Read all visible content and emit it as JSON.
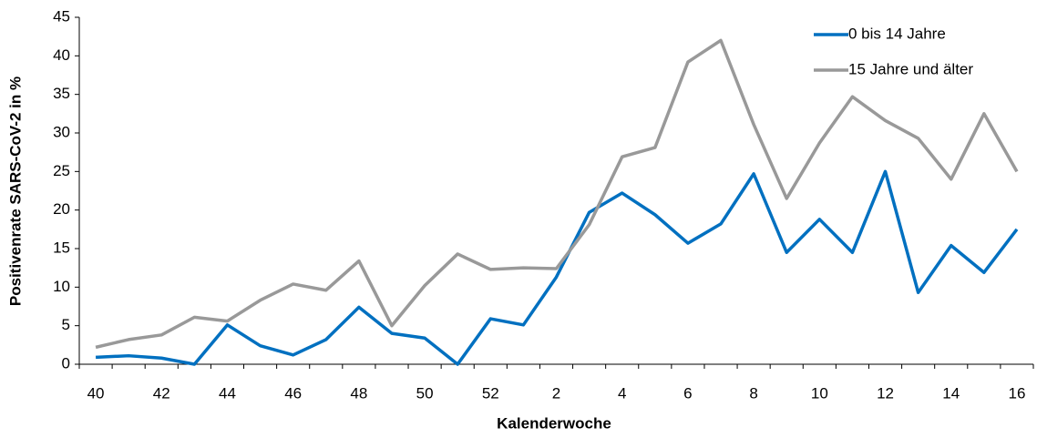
{
  "chart_data": {
    "type": "line",
    "xlabel": "Kalenderwoche",
    "ylabel": "Positivenrate SARS-CoV-2 in %",
    "categories": [
      "40",
      null,
      "42",
      null,
      "44",
      null,
      "46",
      null,
      "48",
      null,
      "50",
      null,
      "52",
      null,
      "2",
      null,
      "4",
      null,
      "6",
      null,
      "8",
      null,
      "10",
      null,
      "12",
      null,
      "14",
      null,
      "16"
    ],
    "ylim": [
      0,
      45
    ],
    "yticks": [
      0,
      5,
      10,
      15,
      20,
      25,
      30,
      35,
      40,
      45
    ],
    "legend": "upper right",
    "series": [
      {
        "name": "0 bis 14 Jahre",
        "color": "#0070c0",
        "values": [
          0.9,
          1.1,
          0.8,
          0,
          5.1,
          2.4,
          1.2,
          3.2,
          7.4,
          4.0,
          3.4,
          0,
          5.9,
          5.1,
          11.3,
          19.7,
          22.2,
          19.4,
          15.7,
          18.2,
          24.7,
          14.5,
          18.8,
          14.5,
          25.0,
          9.3,
          15.4,
          11.9,
          17.5
        ]
      },
      {
        "name": "15 Jahre und älter",
        "color": "#999999",
        "values": [
          2.2,
          3.2,
          3.8,
          6.1,
          5.6,
          8.3,
          10.4,
          9.6,
          13.4,
          5.0,
          10.2,
          14.3,
          12.3,
          12.5,
          12.4,
          18.1,
          26.9,
          28.1,
          39.2,
          42.0,
          31.1,
          21.5,
          28.7,
          34.7,
          31.6,
          29.3,
          24.0,
          32.5,
          25.0
        ]
      }
    ]
  }
}
